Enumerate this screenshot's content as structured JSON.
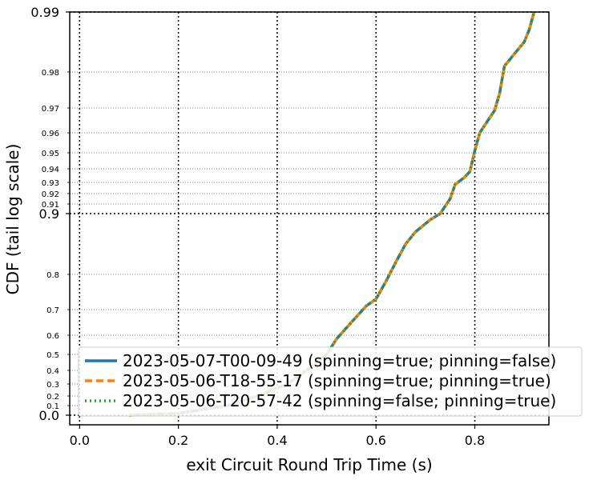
{
  "chart_data": {
    "type": "line",
    "xlabel": "exit Circuit Round Trip Time (s)",
    "ylabel": "CDF (tail log scale)",
    "y_scale": "tail-log",
    "xlim": [
      -0.02,
      0.95
    ],
    "x_ticks": [
      {
        "value": 0.0,
        "label": "0.0"
      },
      {
        "value": 0.2,
        "label": "0.2"
      },
      {
        "value": 0.4,
        "label": "0.4"
      },
      {
        "value": 0.6,
        "label": "0.6"
      },
      {
        "value": 0.8,
        "label": "0.8"
      }
    ],
    "y_major_ticks": [
      {
        "value": 0.0,
        "label": "0.0"
      },
      {
        "value": 0.9,
        "label": "0.9"
      },
      {
        "value": 0.99,
        "label": "0.99"
      }
    ],
    "y_minor_ticks": [
      {
        "value": 0.1,
        "label": "0.1"
      },
      {
        "value": 0.2,
        "label": "0.2"
      },
      {
        "value": 0.3,
        "label": "0.3"
      },
      {
        "value": 0.4,
        "label": "0.4"
      },
      {
        "value": 0.5,
        "label": "0.5"
      },
      {
        "value": 0.6,
        "label": "0.6"
      },
      {
        "value": 0.7,
        "label": "0.7"
      },
      {
        "value": 0.8,
        "label": "0.8"
      },
      {
        "value": 0.91,
        "label": "0.91"
      },
      {
        "value": 0.92,
        "label": "0.92"
      },
      {
        "value": 0.93,
        "label": "0.93"
      },
      {
        "value": 0.94,
        "label": "0.94"
      },
      {
        "value": 0.95,
        "label": "0.95"
      },
      {
        "value": 0.96,
        "label": "0.96"
      },
      {
        "value": 0.97,
        "label": "0.97"
      },
      {
        "value": 0.98,
        "label": "0.98"
      }
    ],
    "grid": true,
    "grid_style": "dotted",
    "legend_position": "lower-right",
    "series": [
      {
        "name": "2023-05-07-T00-09-49 (spinning=true; pinning=false)",
        "color": "#1f77b4",
        "dash": "solid",
        "x": [
          0.1,
          0.2,
          0.3,
          0.36,
          0.42,
          0.46,
          0.5,
          0.52,
          0.55,
          0.58,
          0.6,
          0.62,
          0.64,
          0.66,
          0.68,
          0.71,
          0.73,
          0.75,
          0.76,
          0.78,
          0.79,
          0.8,
          0.81,
          0.83,
          0.84,
          0.85,
          0.86,
          0.87,
          0.88,
          0.89,
          0.9,
          0.91,
          0.92
        ],
        "y": [
          0.0,
          0.02,
          0.1,
          0.2,
          0.3,
          0.4,
          0.5,
          0.58,
          0.65,
          0.71,
          0.73,
          0.78,
          0.82,
          0.85,
          0.87,
          0.89,
          0.9,
          0.915,
          0.928,
          0.934,
          0.938,
          0.951,
          0.96,
          0.966,
          0.969,
          0.974,
          0.981,
          0.982,
          0.983,
          0.984,
          0.985,
          0.987,
          0.99
        ]
      },
      {
        "name": "2023-05-06-T18-55-17 (spinning=true; pinning=true)",
        "color": "#ff7f0e",
        "dash": "dashed",
        "x": [
          0.1,
          0.2,
          0.3,
          0.36,
          0.42,
          0.46,
          0.5,
          0.52,
          0.55,
          0.58,
          0.6,
          0.62,
          0.64,
          0.66,
          0.68,
          0.71,
          0.73,
          0.75,
          0.76,
          0.78,
          0.79,
          0.8,
          0.81,
          0.83,
          0.84,
          0.85,
          0.86,
          0.87,
          0.88,
          0.89,
          0.9,
          0.91,
          0.92
        ],
        "y": [
          0.0,
          0.02,
          0.1,
          0.2,
          0.3,
          0.4,
          0.5,
          0.58,
          0.65,
          0.71,
          0.73,
          0.78,
          0.82,
          0.85,
          0.87,
          0.89,
          0.9,
          0.915,
          0.928,
          0.934,
          0.938,
          0.951,
          0.96,
          0.966,
          0.969,
          0.974,
          0.981,
          0.982,
          0.983,
          0.984,
          0.985,
          0.987,
          0.99
        ]
      },
      {
        "name": "2023-05-06-T20-57-42 (spinning=false; pinning=true)",
        "color": "#2ca02c",
        "dash": "dotted",
        "x": [
          0.1,
          0.2,
          0.3,
          0.36,
          0.42,
          0.46,
          0.5,
          0.52,
          0.55,
          0.58,
          0.6,
          0.62,
          0.64,
          0.66,
          0.68,
          0.71,
          0.73,
          0.75,
          0.76,
          0.78,
          0.79,
          0.8,
          0.81,
          0.83,
          0.84,
          0.85,
          0.86,
          0.87,
          0.88,
          0.89,
          0.9,
          0.91,
          0.92
        ],
        "y": [
          0.0,
          0.02,
          0.1,
          0.2,
          0.3,
          0.4,
          0.5,
          0.58,
          0.65,
          0.71,
          0.73,
          0.78,
          0.82,
          0.85,
          0.87,
          0.89,
          0.9,
          0.915,
          0.928,
          0.934,
          0.938,
          0.951,
          0.96,
          0.966,
          0.969,
          0.974,
          0.981,
          0.982,
          0.983,
          0.984,
          0.985,
          0.987,
          0.99
        ]
      }
    ]
  }
}
